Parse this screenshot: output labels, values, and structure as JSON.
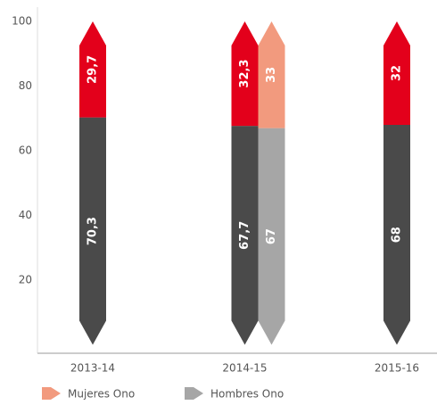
{
  "chart_data": {
    "type": "bar",
    "categories": [
      "2013-14",
      "2014-15",
      "2015-16"
    ],
    "series": [
      {
        "color": "#e3001b",
        "values": [
          29.7,
          32.3,
          32
        ],
        "value_labels": [
          "29,7",
          "32,3",
          null
        ]
      },
      {
        "color": "#4a4a4a",
        "values": [
          70.3,
          67.7,
          68
        ],
        "value_labels": [
          "70,3",
          "67,7",
          null
        ]
      },
      {
        "name": "Mujeres Ono",
        "color": "#f29a7e",
        "values": [
          null,
          33,
          null
        ]
      },
      {
        "name": "Hombres Ono",
        "color": "#a6a6a6",
        "values": [
          null,
          67,
          null
        ]
      }
    ],
    "ylim": [
      0,
      100
    ],
    "yticks": [
      20,
      40,
      60,
      80,
      100
    ],
    "grid": false
  }
}
